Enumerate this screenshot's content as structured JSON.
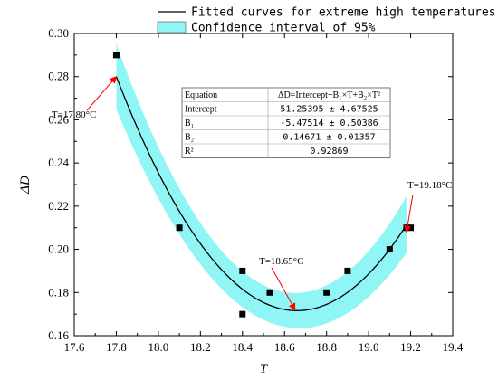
{
  "chart_data": {
    "type": "scatter",
    "xlabel": "T",
    "ylabel": "ΔD",
    "xlim": [
      17.6,
      19.4
    ],
    "ylim": [
      0.16,
      0.3
    ],
    "x_ticks": [
      17.6,
      17.8,
      18.0,
      18.2,
      18.4,
      18.6,
      18.8,
      19.0,
      19.2,
      19.4
    ],
    "y_ticks": [
      0.16,
      0.18,
      0.2,
      0.22,
      0.24,
      0.26,
      0.28,
      0.3
    ],
    "x_tick_labels": [
      "17.6",
      "17.8",
      "18.0",
      "18.2",
      "18.4",
      "18.6",
      "18.8",
      "19.0",
      "19.2",
      "19.4"
    ],
    "y_tick_labels": [
      "0.16",
      "0.18",
      "0.20",
      "0.22",
      "0.24",
      "0.26",
      "0.28",
      "0.30"
    ],
    "grid": false,
    "points": [
      {
        "x": 17.8,
        "y": 0.29
      },
      {
        "x": 18.1,
        "y": 0.21
      },
      {
        "x": 18.4,
        "y": 0.19
      },
      {
        "x": 18.4,
        "y": 0.17
      },
      {
        "x": 18.53,
        "y": 0.18
      },
      {
        "x": 18.8,
        "y": 0.18
      },
      {
        "x": 18.9,
        "y": 0.19
      },
      {
        "x": 19.1,
        "y": 0.2
      },
      {
        "x": 19.18,
        "y": 0.21
      },
      {
        "x": 19.2,
        "y": 0.21
      }
    ],
    "fit": {
      "equation_label": "Equation",
      "equation": "ΔD=Intercept+B₁×T+B₂×T²",
      "intercept": 51.25395,
      "b1": -5.47514,
      "b2": 0.14671,
      "x_range": [
        17.8,
        19.18
      ],
      "ci_halfwidth": 0.008
    },
    "table": [
      {
        "label": "Equation",
        "value": "ΔD=Intercept+B₁×T+B₂×T²"
      },
      {
        "label": "Intercept",
        "value": "51.25395 ± 4.67525"
      },
      {
        "label": "B₁",
        "value": "-5.47514 ± 0.50386"
      },
      {
        "label": "B₂",
        "value": "0.14671 ± 0.01357"
      },
      {
        "label": "R²",
        "value": "0.92869"
      }
    ],
    "legend": {
      "placement": "top-right",
      "entries": [
        {
          "label": "Fitted curves for extreme high temperatures",
          "kind": "line",
          "color": "#000000"
        },
        {
          "label": "Confidence interval of 95%",
          "kind": "band",
          "color": "#8ff5f5"
        }
      ]
    },
    "annotations": [
      {
        "text": "T=17.80°C",
        "x": 17.8,
        "y": 0.28
      },
      {
        "text": "T=18.65°C",
        "x": 18.65,
        "y": 0.172
      },
      {
        "text": "T=19.18°C",
        "x": 19.18,
        "y": 0.208
      }
    ],
    "colors": {
      "band": "#8ff5f5",
      "curve": "#000000",
      "marker": "#000000",
      "arrow": "#ff0000"
    }
  }
}
